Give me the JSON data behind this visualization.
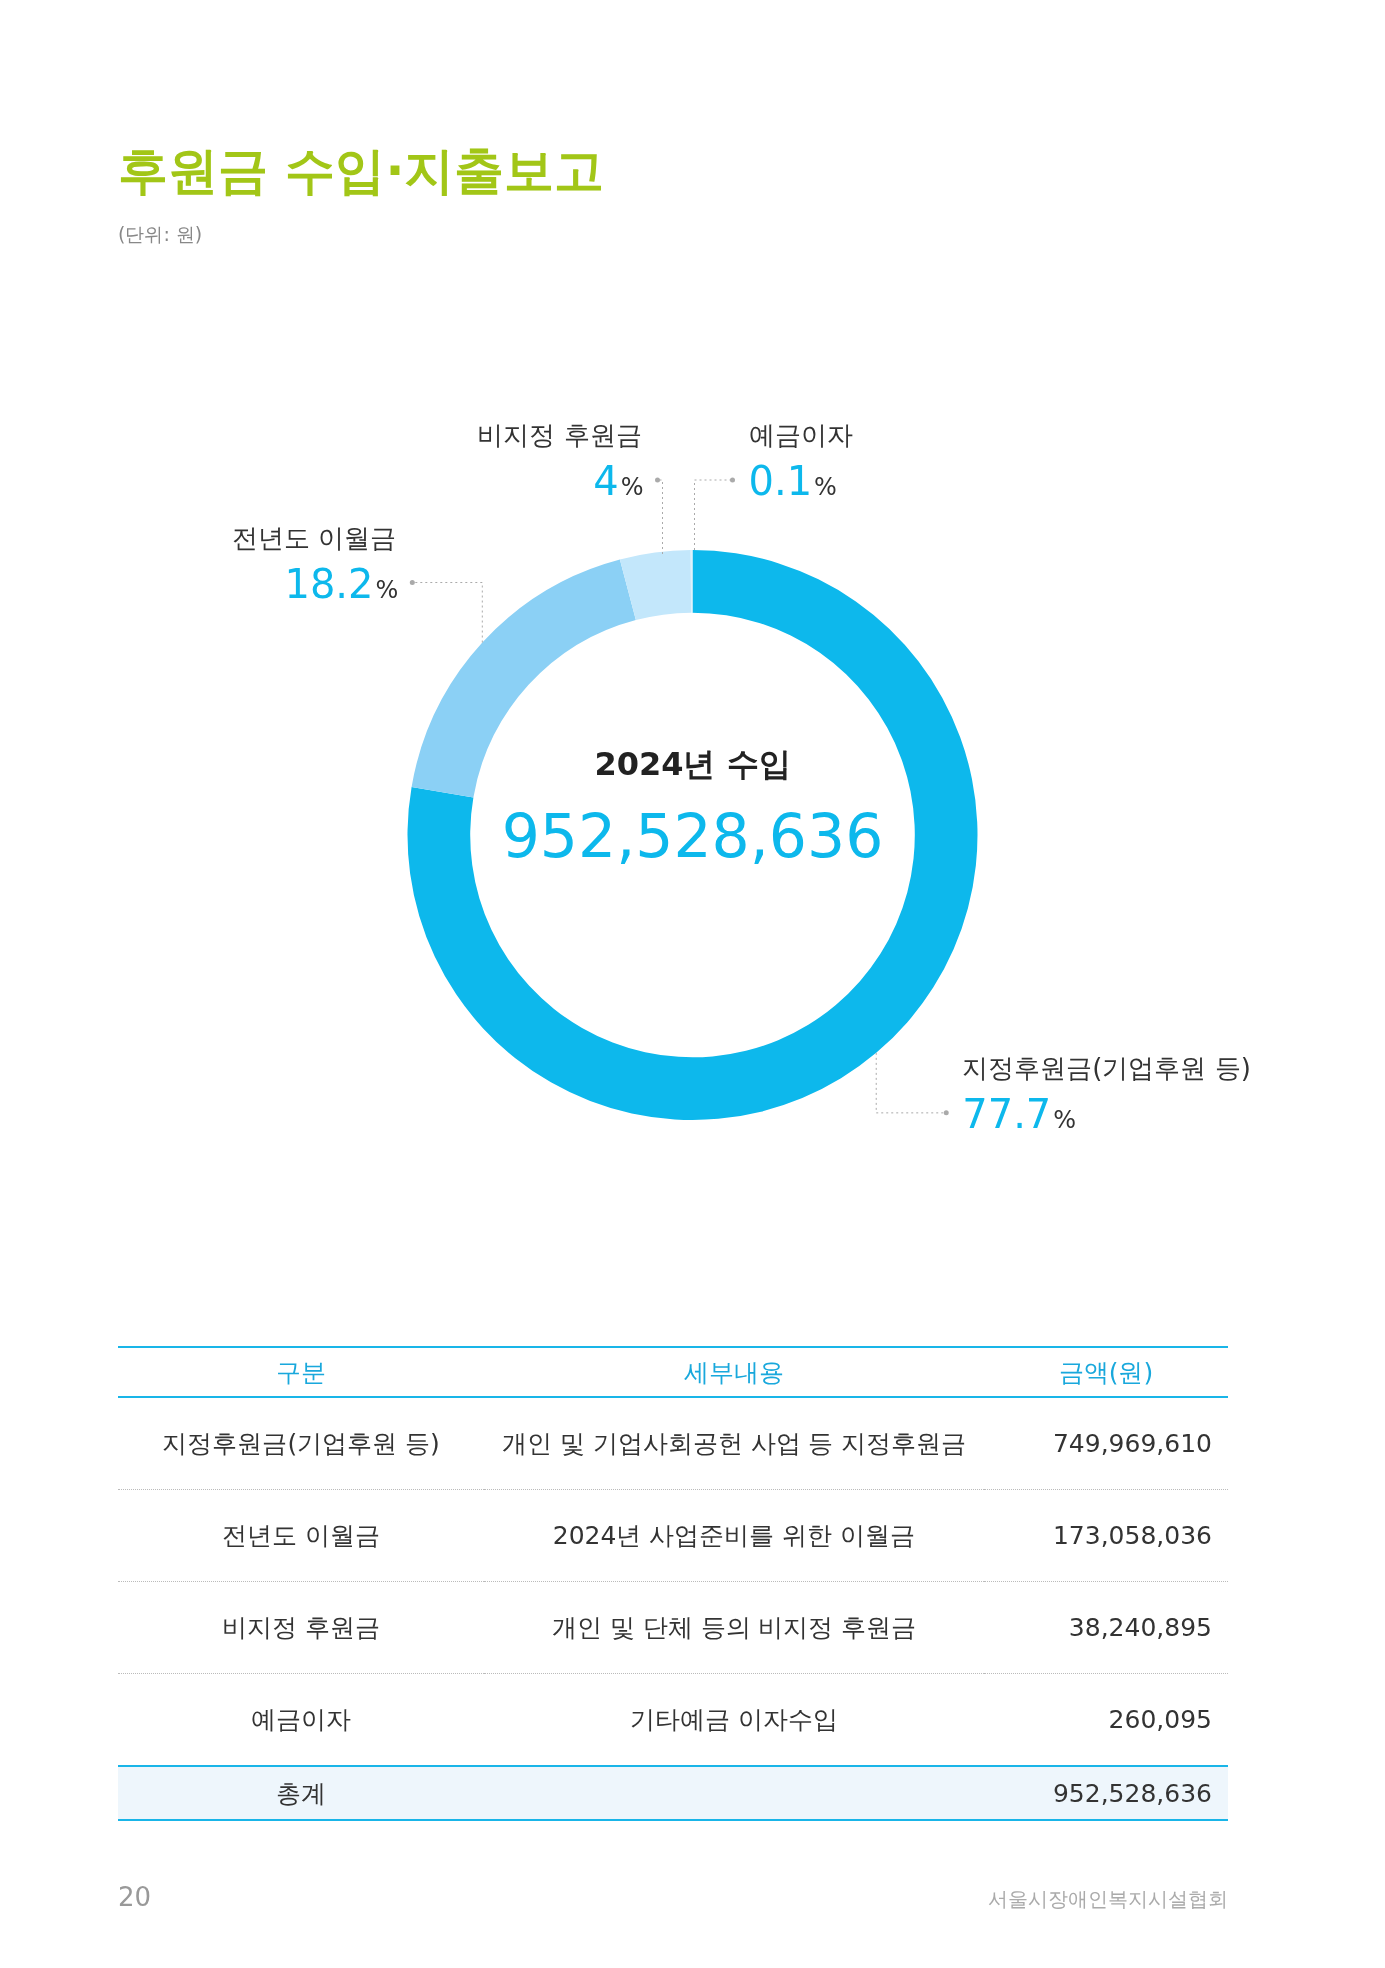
{
  "chart_data": {
    "type": "donut",
    "title": "후원금 수입·지출보고",
    "categories": [
      "지정후원금(기업후원 등)",
      "전년도 이월금",
      "비지정 후원금",
      "예금이자"
    ],
    "values": [
      77.7,
      18.2,
      4,
      0.1
    ],
    "colors": [
      "#0db8ec",
      "#8bd0f5",
      "#c3e7fb",
      "#dff2fc"
    ],
    "value_labels": [
      "77.7%",
      "18.2%",
      "4%",
      "0.1%"
    ],
    "legend": false,
    "annotations": [
      "(단위: 원)",
      "2024년 수입",
      "952,528,636",
      "구분",
      "세부내용",
      "금액(원)",
      "개인 및 기업사회공헌 사업 등 지정후원금",
      "2024년 사업준비를 위한 이월금",
      "개인 및 단체 등의 비지정 후원금",
      "기타예금 이자수입",
      "749,969,610",
      "173,058,036",
      "38,240,895",
      "260,095",
      "총계",
      "952,528,636",
      "20",
      "서울시장애인복지시설협회"
    ]
  }
}
